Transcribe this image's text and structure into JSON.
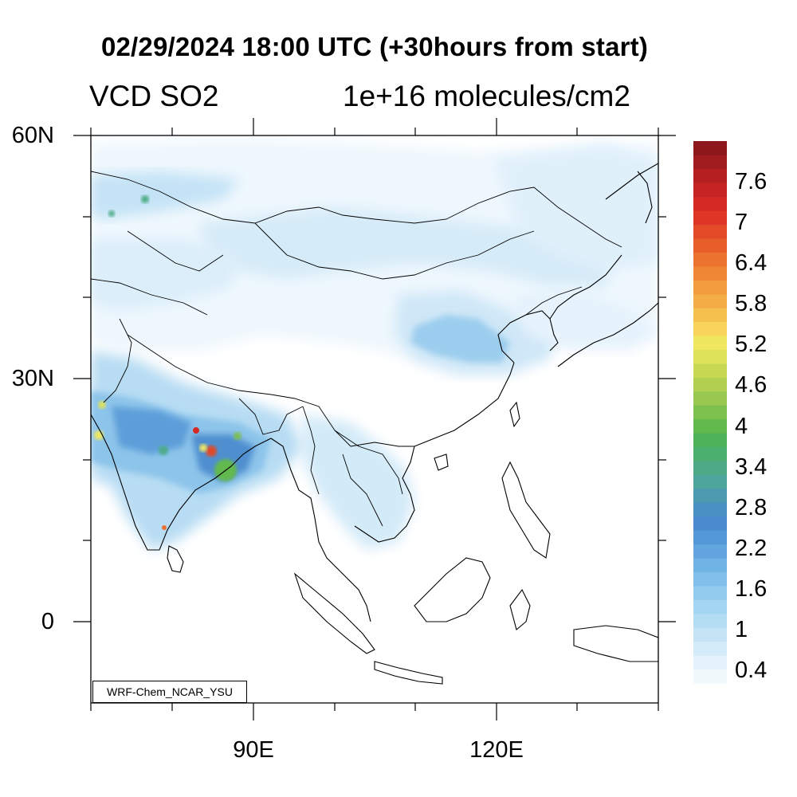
{
  "title": "02/29/2024 18:00 UTC (+30hours from start)",
  "subtitle_left": "VCD SO2",
  "subtitle_right": "1e+16 molecules/cm2",
  "credit": "WRF-Chem_NCAR_YSU",
  "map": {
    "projection": "lat-lon",
    "lon_range_deg_east": [
      70,
      140
    ],
    "lat_range_deg": [
      -10,
      60
    ],
    "lat_ticks": [
      {
        "label": "60N"
      },
      {
        "label": "30N"
      },
      {
        "label": "0"
      }
    ],
    "lon_ticks": [
      {
        "label": "90E"
      },
      {
        "label": "120E"
      }
    ],
    "field": "vertical column density of SO2",
    "high_values_region": "eastern India / Bangladesh",
    "moderate_values_regions": [
      "northern India",
      "north-central China",
      "western Mongolia"
    ]
  },
  "colorbar": {
    "colors": [
      "#f2f9fd",
      "#e3f2fb",
      "#d4ecf9",
      "#c4e4f6",
      "#b4ddf4",
      "#a4d5f1",
      "#92cbee",
      "#80c0ea",
      "#70b3e5",
      "#62a5df",
      "#5598d8",
      "#4a8bcf",
      "#4a90c4",
      "#4d9ab0",
      "#4ea59c",
      "#4cab86",
      "#4aae6e",
      "#4db35a",
      "#62b94e",
      "#7ec04e",
      "#98c84f",
      "#b2cf52",
      "#c8d853",
      "#dee25a",
      "#f0e760",
      "#f8d45c",
      "#f6c04f",
      "#f4ac46",
      "#f29a3e",
      "#ef8635",
      "#ec722f",
      "#e85e2b",
      "#e34a28",
      "#dd3626",
      "#d42a25",
      "#c62424",
      "#b51f22",
      "#a11c1f",
      "#8c181b"
    ],
    "tick_labels": [
      "7.6",
      "7",
      "6.4",
      "5.8",
      "5.2",
      "4.6",
      "4",
      "3.4",
      "2.8",
      "2.2",
      "1.6",
      "1",
      "0.4"
    ]
  }
}
